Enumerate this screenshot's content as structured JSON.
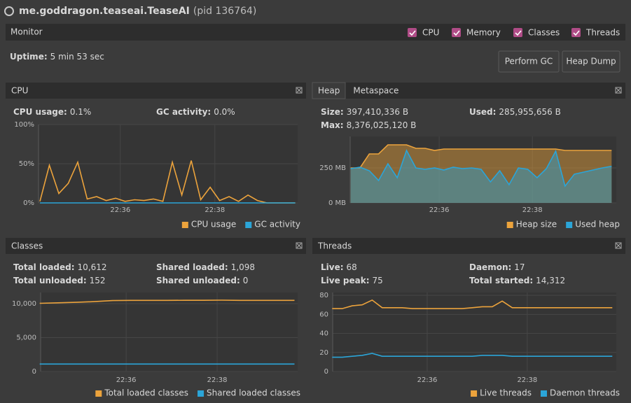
{
  "window": {
    "app": "me.goddragon.teaseai.TeaseAI",
    "pid": "(pid 136764)"
  },
  "monitor": {
    "title": "Monitor",
    "checkboxes": [
      "CPU",
      "Memory",
      "Classes",
      "Threads"
    ],
    "uptime_label": "Uptime:",
    "uptime": "5 min 53 sec",
    "buttons": [
      "Perform GC",
      "Heap Dump"
    ]
  },
  "panels": [
    {
      "title": "CPU",
      "stats": [
        {
          "label": "CPU usage:",
          "value": "0.1%"
        },
        {
          "label": "GC activity:",
          "value": "0.0%"
        }
      ],
      "chart": {
        "type": "line",
        "x": [
          34.3,
          34.5,
          34.7,
          34.9,
          35.1,
          35.3,
          35.5,
          35.7,
          35.9,
          36.1,
          36.3,
          36.5,
          36.7,
          36.9,
          37.1,
          37.3,
          37.5,
          37.7,
          37.9,
          38.1,
          38.3,
          38.5,
          38.7,
          38.9,
          39.1,
          39.3,
          39.5,
          39.7
        ],
        "xlim": [
          34.27,
          39.75
        ],
        "xticks": [
          {
            "value": 36,
            "label": "22:36"
          },
          {
            "value": 38,
            "label": "22:38"
          }
        ],
        "ylim": [
          0,
          100
        ],
        "yticks": [
          {
            "value": 0,
            "label": "0%"
          },
          {
            "value": 50,
            "label": "50%"
          },
          {
            "value": 100,
            "label": "100%"
          }
        ],
        "series": [
          {
            "name": "CPU usage",
            "color": "#eca33c",
            "values": [
              2,
              48,
              12,
              25,
              52,
              5,
              8,
              3,
              6,
              2,
              4,
              3,
              5,
              2,
              52,
              10,
              54,
              4,
              20,
              3,
              8,
              2,
              10,
              3,
              0,
              0,
              0,
              0
            ]
          },
          {
            "name": "GC activity",
            "color": "#2ba5d8",
            "values": [
              0,
              0,
              0,
              0,
              0,
              0,
              0,
              0,
              0,
              0,
              0,
              0,
              0,
              0,
              0,
              0,
              0,
              0,
              0,
              0,
              0,
              0,
              0,
              0,
              0,
              0,
              0,
              0
            ]
          }
        ]
      }
    },
    {
      "tabs": [
        "Heap",
        "Metaspace"
      ],
      "stats": [
        {
          "label": "Size:",
          "value": "397,410,336 B"
        },
        {
          "label": "Used:",
          "value": "285,955,656 B"
        },
        {
          "label": "Max:",
          "value": "8,376,025,120 B"
        }
      ],
      "chart": {
        "type": "area",
        "x": [
          34.1,
          34.3,
          34.5,
          34.7,
          34.9,
          35.1,
          35.3,
          35.5,
          35.7,
          35.9,
          36.1,
          36.3,
          36.5,
          36.7,
          36.9,
          37.1,
          37.3,
          37.5,
          37.7,
          37.9,
          38.1,
          38.3,
          38.5,
          38.7,
          38.9,
          39.1,
          39.3,
          39.5,
          39.7
        ],
        "xlim": [
          34.09,
          39.8
        ],
        "xticks": [
          {
            "value": 36,
            "label": "22:36"
          },
          {
            "value": 38,
            "label": "22:38"
          }
        ],
        "ylim": [
          0,
          475
        ],
        "yticks": [
          {
            "value": 0,
            "label": "0 MB"
          },
          {
            "value": 250,
            "label": "250 MB"
          }
        ],
        "series": [
          {
            "name": "Heap size",
            "color": "#eca33c",
            "values": [
              250,
              250,
              350,
              350,
              415,
              415,
              415,
              390,
              390,
              375,
              385,
              385,
              385,
              385,
              385,
              385,
              385,
              385,
              385,
              385,
              385,
              385,
              385,
              375,
              375,
              375,
              375,
              375,
              375
            ]
          },
          {
            "name": "Used heap",
            "color": "#2ba5d8",
            "values": [
              245,
              255,
              230,
              160,
              280,
              180,
              375,
              250,
              240,
              250,
              235,
              255,
              245,
              250,
              240,
              150,
              230,
              130,
              250,
              240,
              180,
              245,
              370,
              120,
              205,
              220,
              235,
              250,
              262
            ]
          }
        ]
      }
    },
    {
      "title": "Classes",
      "stats": [
        {
          "label": "Total loaded:",
          "value": "10,612"
        },
        {
          "label": "Shared loaded:",
          "value": "1,098"
        },
        {
          "label": "Total unloaded:",
          "value": "152"
        },
        {
          "label": "Shared unloaded:",
          "value": "0"
        }
      ],
      "chart": {
        "type": "line",
        "x": [
          34.1,
          34.5,
          34.9,
          35.3,
          35.7,
          36.1,
          36.5,
          36.9,
          37.3,
          37.7,
          38.1,
          38.5,
          38.9,
          39.3,
          39.7
        ],
        "xlim": [
          34.12,
          39.77
        ],
        "xticks": [
          {
            "value": 36,
            "label": "22:36"
          },
          {
            "value": 38,
            "label": "22:38"
          }
        ],
        "ylim": [
          0,
          11650
        ],
        "yticks": [
          0,
          {
            "value": 5000,
            "label": "5,000"
          },
          {
            "value": 10000,
            "label": "10,000"
          }
        ],
        "series": [
          {
            "name": "Total loaded classes",
            "color": "#eca33c",
            "values": [
              10050,
              10120,
              10200,
              10300,
              10450,
              10480,
              10480,
              10480,
              10500,
              10500,
              10520,
              10480,
              10480,
              10480,
              10480
            ]
          },
          {
            "name": "Shared loaded classes",
            "color": "#2ba5d8",
            "values": [
              1098,
              1098,
              1098,
              1098,
              1098,
              1098,
              1098,
              1098,
              1098,
              1098,
              1098,
              1098,
              1098,
              1098,
              1098
            ]
          }
        ]
      }
    },
    {
      "title": "Threads",
      "stats": [
        {
          "label": "Live:",
          "value": "68"
        },
        {
          "label": "Daemon:",
          "value": "17"
        },
        {
          "label": "Live peak:",
          "value": "75"
        },
        {
          "label": "Total started:",
          "value": "14,312"
        }
      ],
      "chart": {
        "type": "line",
        "x": [
          34.1,
          34.3,
          34.5,
          34.7,
          34.9,
          35.1,
          35.3,
          35.5,
          35.7,
          35.9,
          36.1,
          36.3,
          36.5,
          36.7,
          36.9,
          37.1,
          37.3,
          37.5,
          37.7,
          37.9,
          38.1,
          38.3,
          38.5,
          38.7,
          38.9,
          39.1,
          39.3,
          39.5,
          39.7
        ],
        "xlim": [
          34.11,
          39.78
        ],
        "xticks": [
          {
            "value": 36,
            "label": "22:36"
          },
          {
            "value": 38,
            "label": "22:38"
          }
        ],
        "ylim": [
          0,
          83
        ],
        "yticks": [
          0,
          20,
          40,
          60,
          80
        ],
        "series": [
          {
            "name": "Live threads",
            "color": "#eca33c",
            "values": [
              66,
              66,
              69,
              70,
              75,
              67,
              67,
              67,
              66,
              66,
              66,
              66,
              66,
              66,
              67,
              68,
              68,
              74,
              67,
              67,
              67,
              67,
              67,
              67,
              67,
              67,
              67,
              67,
              67
            ]
          },
          {
            "name": "Daemon threads",
            "color": "#2ba5d8",
            "values": [
              15,
              15,
              16,
              17,
              19,
              16,
              16,
              16,
              16,
              16,
              16,
              16,
              16,
              16,
              16,
              17,
              17,
              17,
              16,
              16,
              16,
              16,
              16,
              16,
              16,
              16,
              16,
              16,
              16
            ]
          }
        ]
      }
    }
  ]
}
